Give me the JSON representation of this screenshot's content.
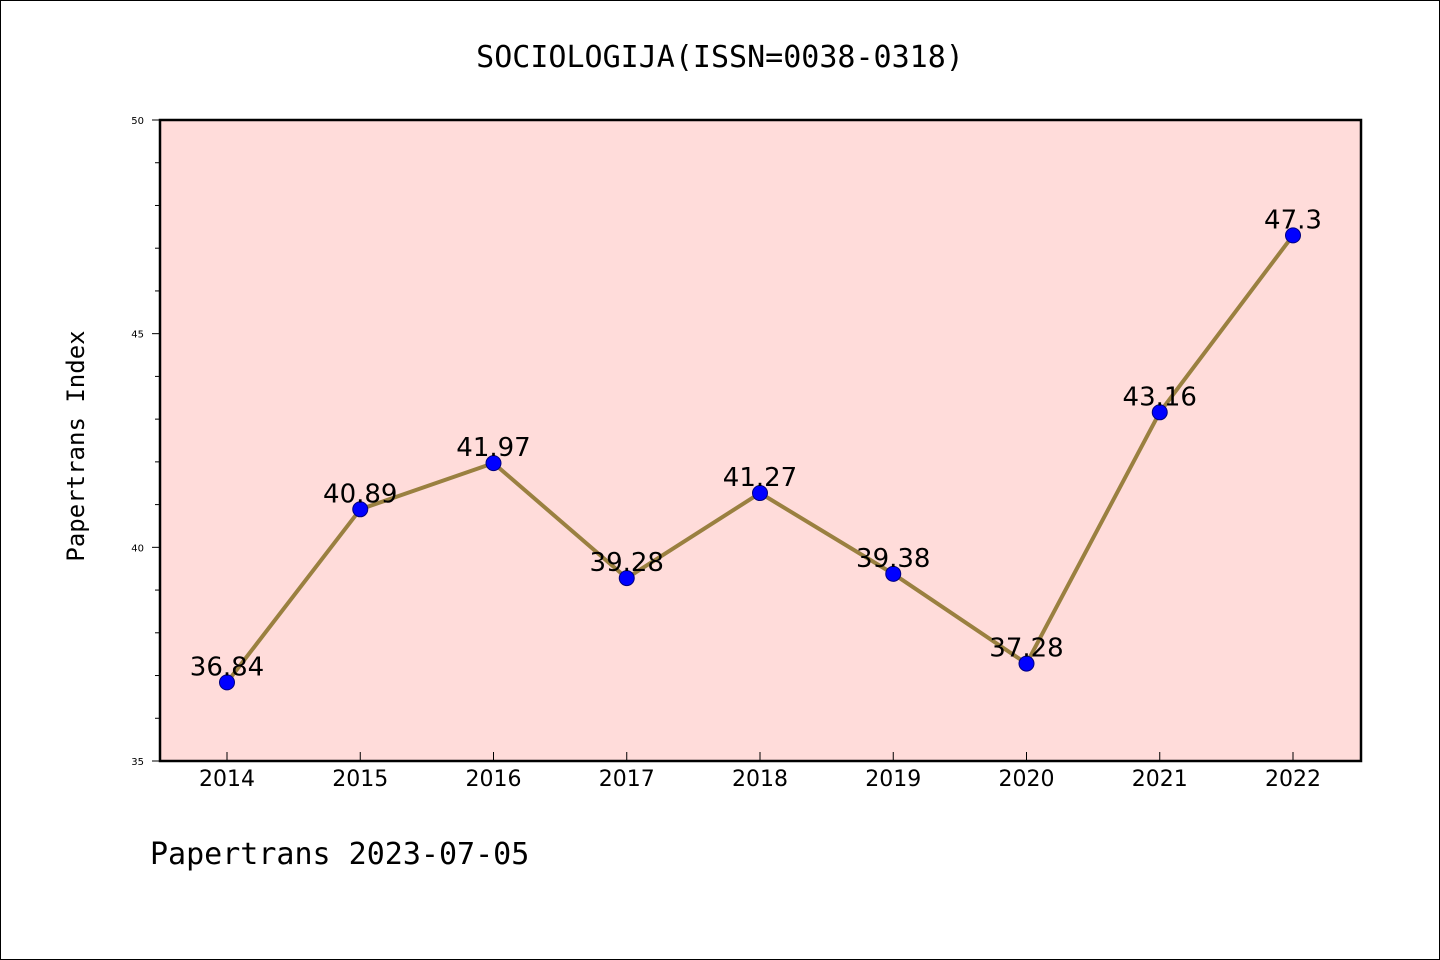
{
  "chart_data": {
    "type": "line",
    "title": "SOCIOLOGIJA(ISSN=0038-0318)",
    "ylabel": "Papertrans Index",
    "xlabel": "",
    "categories": [
      "2014",
      "2015",
      "2016",
      "2017",
      "2018",
      "2019",
      "2020",
      "2021",
      "2022"
    ],
    "values": [
      36.84,
      40.89,
      41.97,
      39.28,
      41.27,
      39.38,
      37.28,
      43.16,
      47.3
    ],
    "data_labels": [
      "36.84",
      "40.89",
      "41.97",
      "39.28",
      "41.27",
      "39.38",
      "37.28",
      "43.16",
      "47.3"
    ],
    "ylim": [
      35,
      50
    ],
    "yticks": [
      "35",
      "40",
      "45",
      "50"
    ],
    "grid": false,
    "colors": {
      "plot_background": "#FFDCDA",
      "line": "#9A8040",
      "marker_fill": "#0000FF",
      "marker_edge": "#000080"
    }
  },
  "footer": "Papertrans 2023-07-05"
}
